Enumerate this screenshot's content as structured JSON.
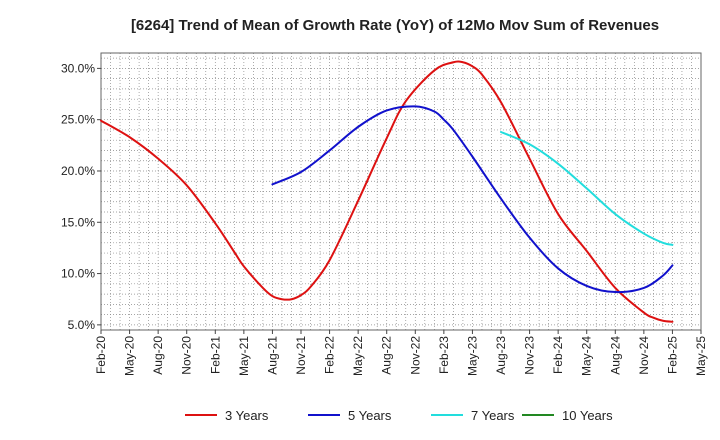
{
  "chart_data": {
    "type": "line",
    "title": "[6264]  Trend of Mean of Growth Rate (YoY) of 12Mo Mov Sum of Revenues",
    "xlabel": "",
    "ylabel": "",
    "ylim": [
      0.045,
      0.315
    ],
    "y_ticks": [
      0.05,
      0.1,
      0.15,
      0.2,
      0.25,
      0.3
    ],
    "y_tick_labels": [
      "5.0%",
      "10.0%",
      "15.0%",
      "20.0%",
      "25.0%",
      "30.0%"
    ],
    "x_tick_labels": [
      "Feb-20",
      "May-20",
      "Aug-20",
      "Nov-20",
      "Feb-21",
      "May-21",
      "Aug-21",
      "Nov-21",
      "Feb-22",
      "May-22",
      "Aug-22",
      "Nov-22",
      "Feb-23",
      "May-23",
      "Aug-23",
      "Nov-23",
      "Feb-24",
      "May-24",
      "Aug-24",
      "Nov-24",
      "Feb-25",
      "May-25"
    ],
    "x_month_index_note": "x = months since Feb-20",
    "grid": true,
    "legend_position": "bottom",
    "series": [
      {
        "name": "3 Years",
        "color": "#dd1111",
        "x": [
          0,
          3,
          6,
          9,
          12,
          14,
          15,
          17,
          18,
          19,
          20,
          21,
          22,
          24,
          27,
          30,
          32,
          35,
          37,
          38,
          39,
          40,
          42,
          45,
          48,
          51,
          54,
          57,
          58,
          59,
          60
        ],
        "values": [
          0.249,
          0.233,
          0.212,
          0.186,
          0.149,
          0.121,
          0.107,
          0.086,
          0.078,
          0.075,
          0.075,
          0.079,
          0.087,
          0.113,
          0.171,
          0.232,
          0.268,
          0.298,
          0.306,
          0.306,
          0.302,
          0.294,
          0.267,
          0.212,
          0.158,
          0.122,
          0.086,
          0.062,
          0.057,
          0.054,
          0.053
        ]
      },
      {
        "name": "5 Years",
        "color": "#1111cc",
        "x": [
          18,
          21,
          24,
          27,
          30,
          33,
          35,
          36,
          37,
          39,
          42,
          45,
          48,
          51,
          54,
          57,
          59,
          60
        ],
        "values": [
          0.187,
          0.199,
          0.22,
          0.243,
          0.259,
          0.263,
          0.258,
          0.25,
          0.24,
          0.214,
          0.173,
          0.135,
          0.105,
          0.088,
          0.082,
          0.086,
          0.098,
          0.108
        ]
      },
      {
        "name": "7 Years",
        "color": "#22dddd",
        "x": [
          42,
          45,
          48,
          51,
          54,
          57,
          59,
          60
        ],
        "values": [
          0.238,
          0.226,
          0.207,
          0.183,
          0.158,
          0.139,
          0.13,
          0.128
        ]
      },
      {
        "name": "10 Years",
        "color": "#228822",
        "x": [],
        "values": []
      }
    ]
  }
}
